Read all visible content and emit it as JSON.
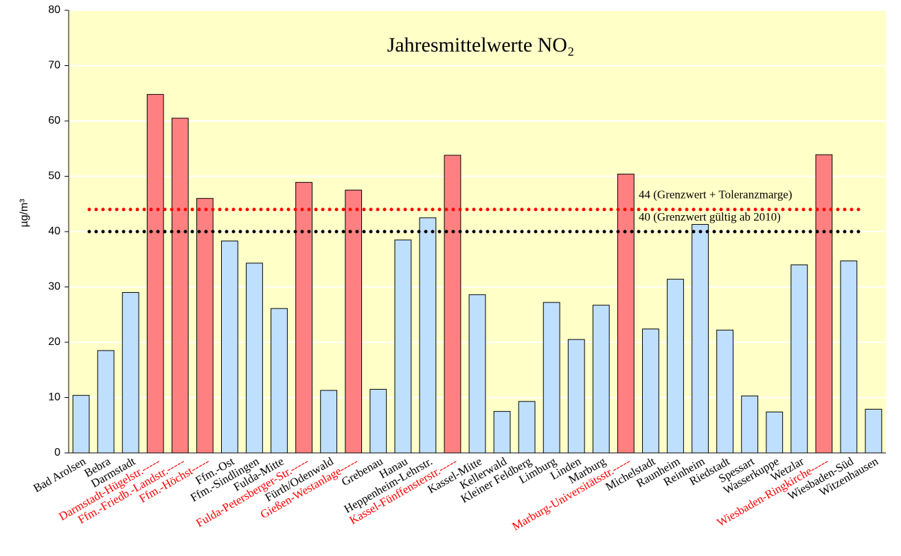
{
  "chart_data": {
    "type": "bar",
    "title": "Jahresmittelwerte NO₂",
    "ylabel": "µg/m³",
    "categories": [
      "Bad Arolsen",
      "Bebra",
      "Darmstadt",
      "Darmstadt-Hügelstr.-----",
      "Ffm.-Friedb.-Landstr.-----",
      "Ffm.-Höchst-----",
      "Ffm.-Ost",
      "Ffm.-Sindlingen",
      "Fulda-Mitte",
      "Fulda-Petersberger-Str.-----",
      "Fürth/Odenwald",
      "Gießen-Westanlage-----",
      "Grebenau",
      "Hanau",
      "Heppenheim-Lehrstr.",
      "Kassel-Fünffensterstr.-----",
      "Kassel-Mitte",
      "Kellerwald",
      "Kleiner Feldberg",
      "Limburg",
      "Linden",
      "Marburg",
      "Marburg-Universitätsstr.-----",
      "Michelstadt",
      "Raunheim",
      "Reinheim",
      "Riedstadt",
      "Spessart",
      "Wasserkuppe",
      "Wetzlar",
      "Wiesbaden-Ringkirche-----",
      "Wiesbaden-Süd",
      "Witzenhausen"
    ],
    "values": [
      10.4,
      18.5,
      29,
      64.8,
      60.5,
      46,
      38.3,
      34.3,
      26.1,
      48.9,
      11.3,
      47.5,
      11.5,
      38.5,
      42.5,
      53.8,
      28.6,
      7.5,
      9.3,
      27.2,
      20.5,
      26.7,
      50.4,
      22.4,
      31.4,
      41.3,
      22.2,
      10.3,
      7.4,
      34,
      53.9,
      34.7,
      7.9
    ],
    "colors": [
      "#bfdfff",
      "#bfdfff",
      "#bfdfff",
      "#ff8080",
      "#ff8080",
      "#ff8080",
      "#bfdfff",
      "#bfdfff",
      "#bfdfff",
      "#ff8080",
      "#bfdfff",
      "#ff8080",
      "#bfdfff",
      "#bfdfff",
      "#bfdfff",
      "#ff8080",
      "#bfdfff",
      "#bfdfff",
      "#bfdfff",
      "#bfdfff",
      "#bfdfff",
      "#bfdfff",
      "#ff8080",
      "#bfdfff",
      "#bfdfff",
      "#bfdfff",
      "#bfdfff",
      "#bfdfff",
      "#bfdfff",
      "#bfdfff",
      "#ff8080",
      "#bfdfff",
      "#bfdfff"
    ],
    "label_colors": [
      "#000",
      "#000",
      "#000",
      "#ff0000",
      "#ff0000",
      "#ff0000",
      "#000",
      "#000",
      "#000",
      "#ff0000",
      "#000",
      "#ff0000",
      "#000",
      "#000",
      "#000",
      "#ff0000",
      "#000",
      "#000",
      "#000",
      "#000",
      "#000",
      "#000",
      "#ff0000",
      "#000",
      "#000",
      "#000",
      "#000",
      "#000",
      "#000",
      "#000",
      "#ff0000",
      "#000",
      "#000"
    ],
    "ylim": [
      0,
      80
    ],
    "yticks": [
      0,
      10,
      20,
      30,
      40,
      50,
      60,
      70,
      80
    ],
    "grid": true,
    "reference_lines": [
      {
        "value": 44,
        "label": "44 (Grenzwert + Toleranzmarge)",
        "color": "#ff0000"
      },
      {
        "value": 40,
        "label": "40 (Grenzwert gültig ab 2010)",
        "color": "#000000"
      }
    ]
  }
}
